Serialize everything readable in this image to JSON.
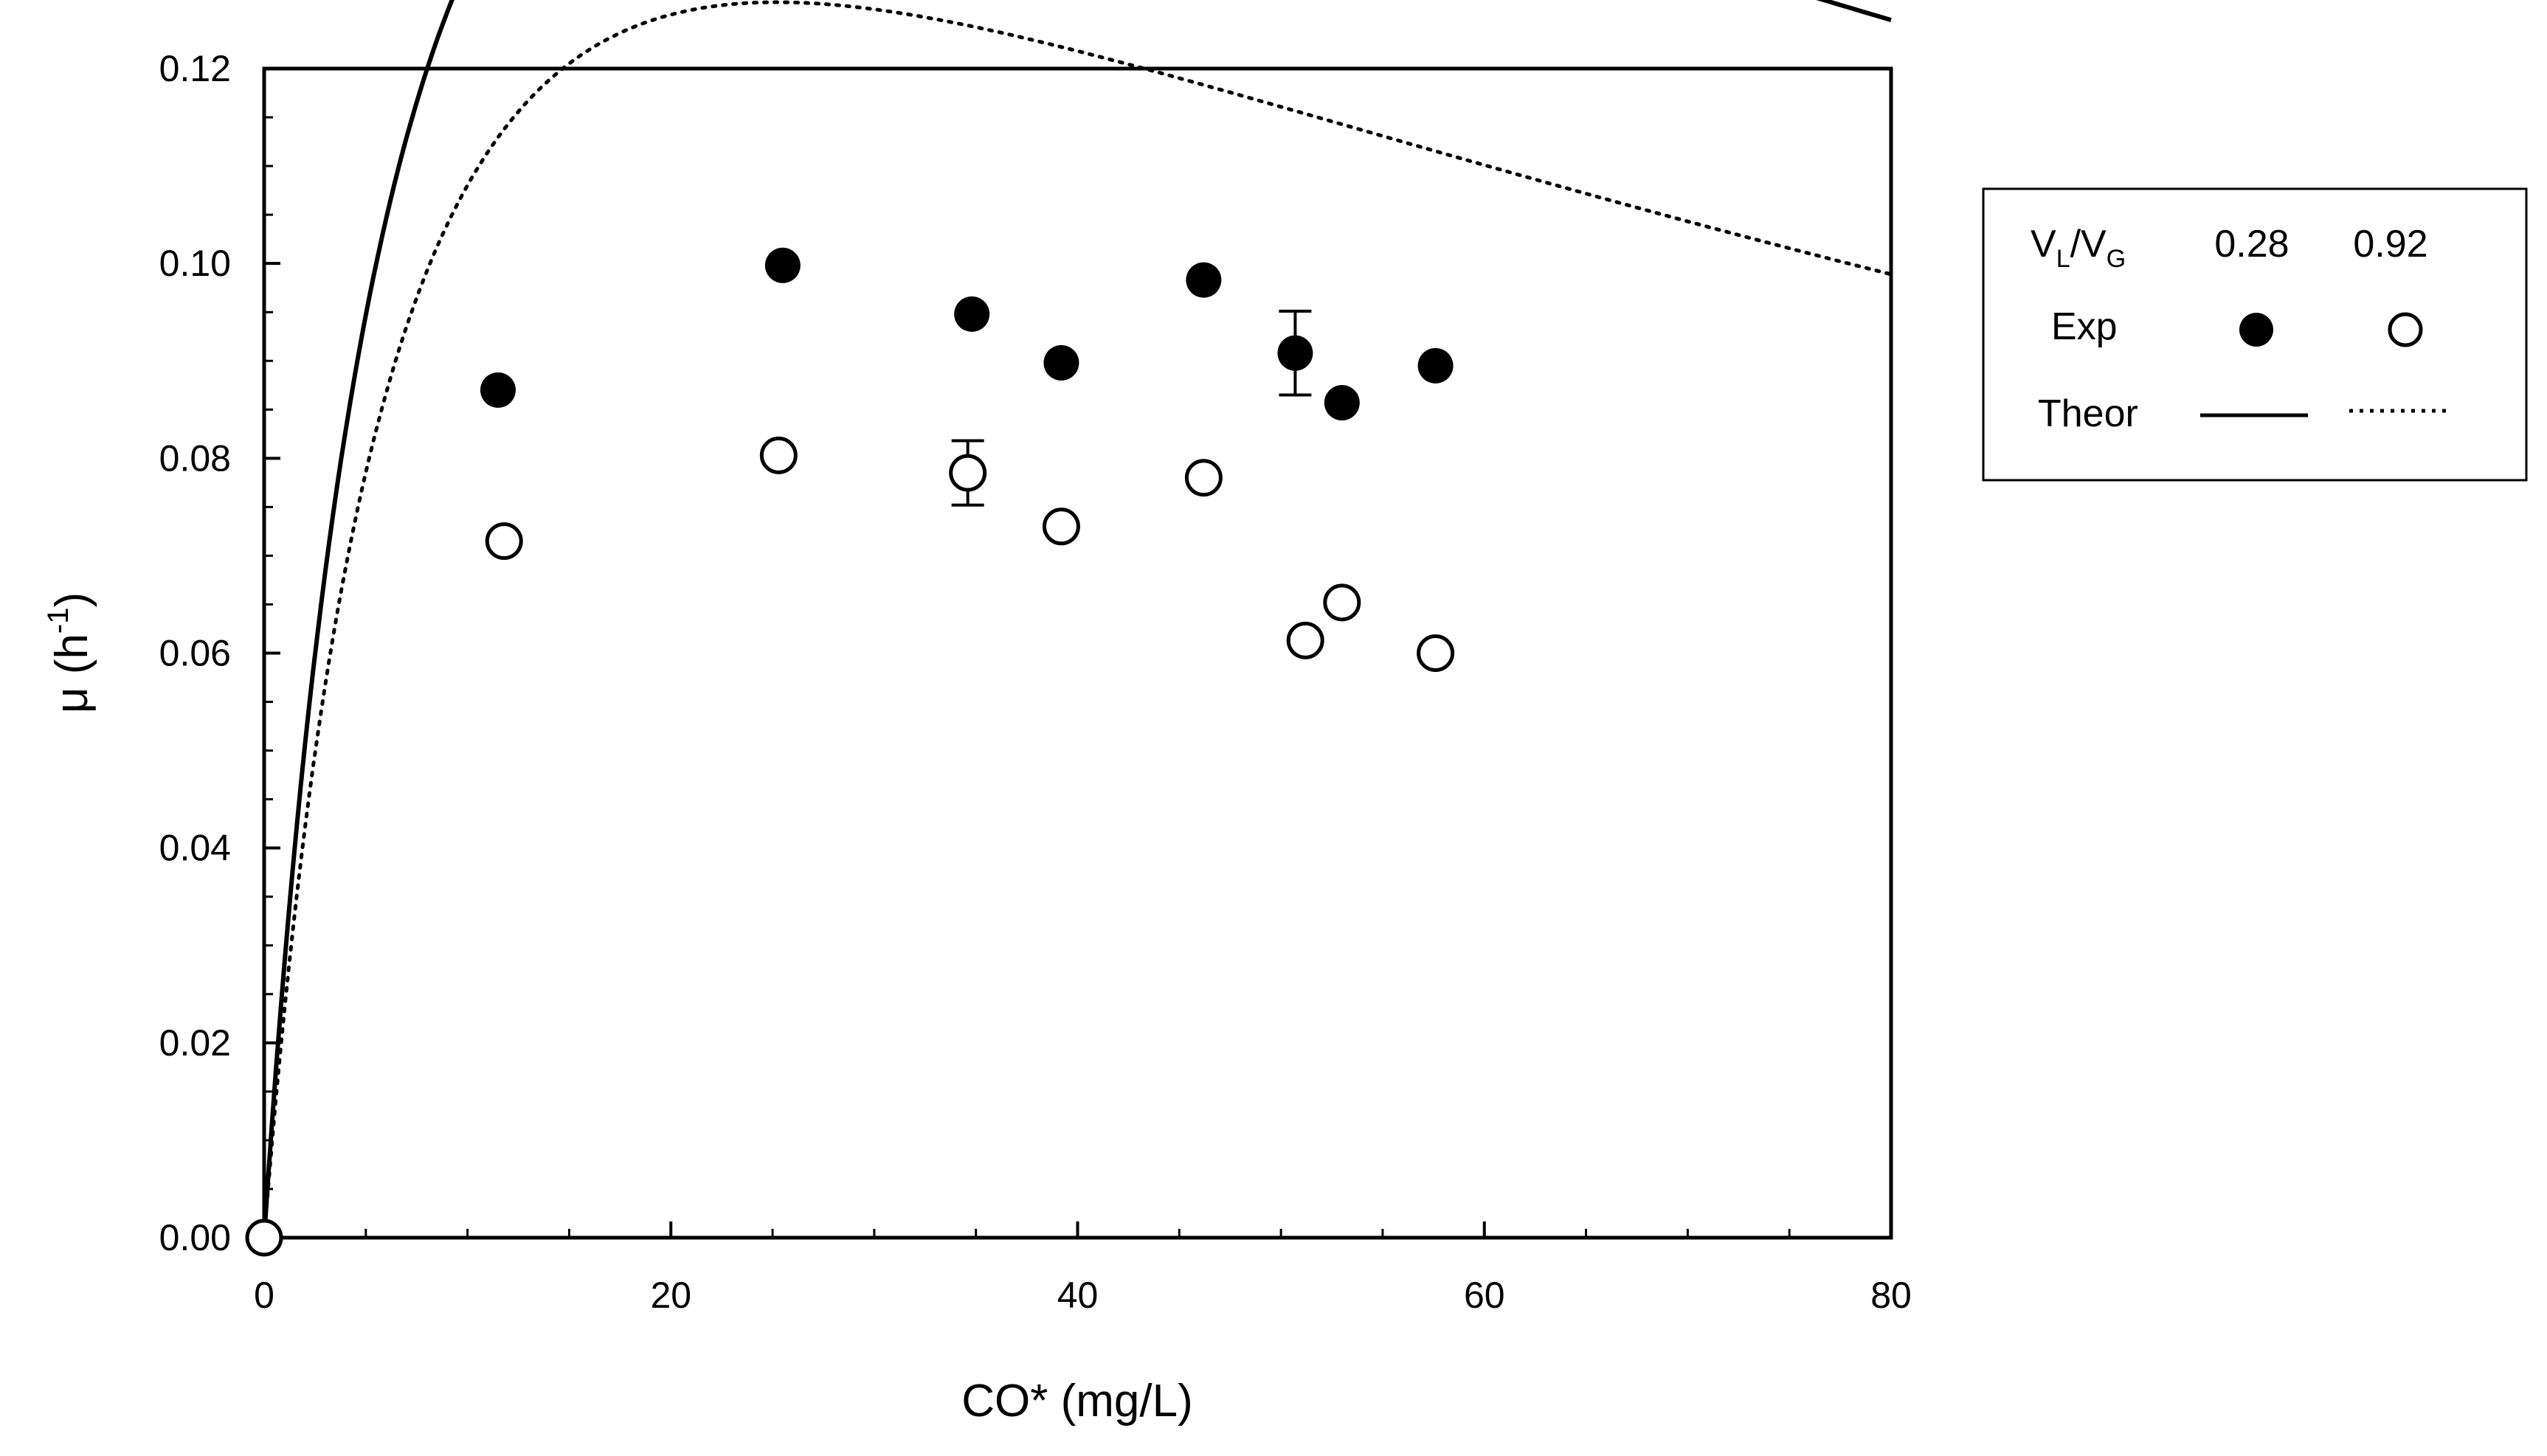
{
  "chart_data": {
    "type": "scatter",
    "xlabel": "CO* (mg/L)",
    "ylabel": "μ (h",
    "ylabel_superscript": "-1",
    "ylabel_close": ")",
    "xlim": [
      0,
      80
    ],
    "ylim": [
      0,
      0.12
    ],
    "x_ticks": [
      0,
      20,
      40,
      60,
      80
    ],
    "x_tick_labels": [
      "0",
      "20",
      "40",
      "60",
      "80"
    ],
    "y_ticks": [
      0,
      0.02,
      0.04,
      0.06,
      0.08,
      0.1,
      0.12
    ],
    "y_tick_labels": [
      "0.00",
      "0.02",
      "0.04",
      "0.06",
      "0.08",
      "0.10",
      "0.12"
    ],
    "grid": false,
    "legend": {
      "placement": "right",
      "header_label": "V",
      "header_sub1": "L",
      "header_sep": "/V",
      "header_sub2": "G",
      "col1": "0.28",
      "col2": "0.92",
      "row_exp": "Exp",
      "row_theor": "Theor"
    },
    "series": [
      {
        "name": "Exp 0.28",
        "marker": "filled-circle",
        "points": [
          {
            "x": 0,
            "y": 0.0
          },
          {
            "x": 11.5,
            "y": 0.087
          },
          {
            "x": 25.5,
            "y": 0.0998
          },
          {
            "x": 34.8,
            "y": 0.0948
          },
          {
            "x": 39.2,
            "y": 0.0898
          },
          {
            "x": 46.2,
            "y": 0.0983
          },
          {
            "x": 50.7,
            "y": 0.0908,
            "err": 0.0043
          },
          {
            "x": 53.0,
            "y": 0.0857
          },
          {
            "x": 57.6,
            "y": 0.0895
          }
        ]
      },
      {
        "name": "Exp 0.92",
        "marker": "open-circle",
        "points": [
          {
            "x": 0,
            "y": 0.0
          },
          {
            "x": 11.8,
            "y": 0.0715
          },
          {
            "x": 25.3,
            "y": 0.0803
          },
          {
            "x": 34.6,
            "y": 0.0785,
            "err": 0.0033
          },
          {
            "x": 39.2,
            "y": 0.073
          },
          {
            "x": 46.2,
            "y": 0.078
          },
          {
            "x": 51.2,
            "y": 0.0613
          },
          {
            "x": 53.0,
            "y": 0.0652
          },
          {
            "x": 57.6,
            "y": 0.06
          }
        ]
      },
      {
        "name": "Theor 0.28",
        "style": "solid",
        "model": "haldane",
        "mu_max": 0.2457,
        "Ks": 7.7,
        "Ki": 92.0
      },
      {
        "name": "Theor 0.92",
        "style": "dotted",
        "model": "haldane",
        "mu_max": 0.2043,
        "Ks": 7.7,
        "Ki": 82.5
      }
    ]
  }
}
